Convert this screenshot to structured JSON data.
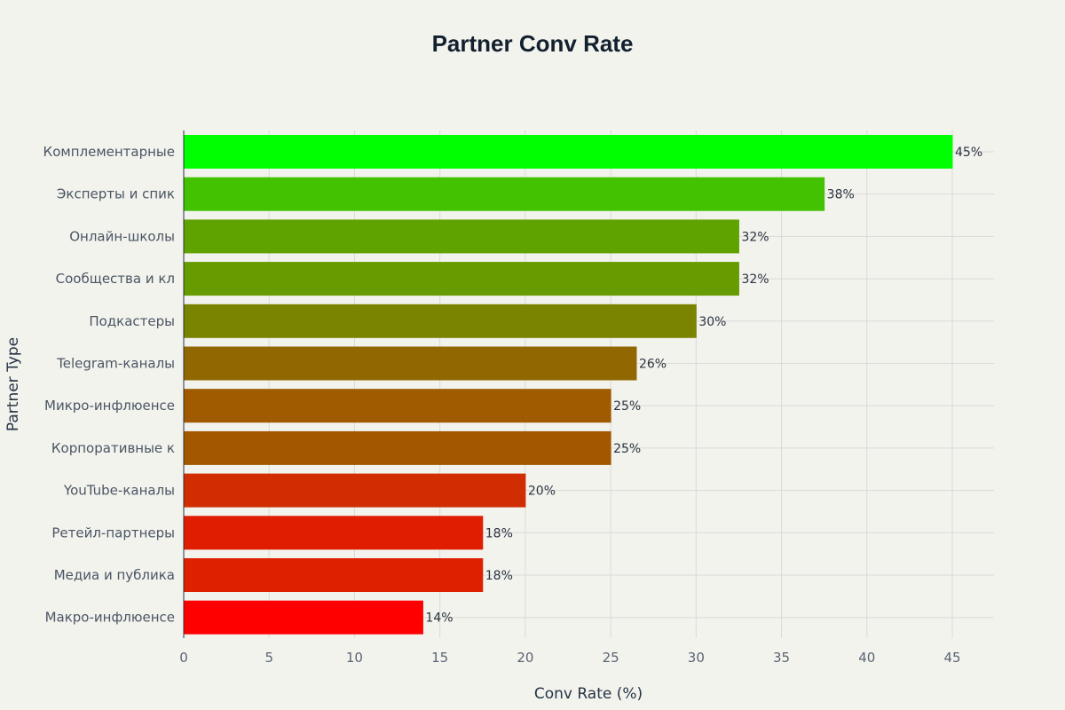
{
  "chart_data": {
    "type": "bar",
    "orientation": "horizontal",
    "title": "Partner Conv Rate",
    "xlabel": "Conv Rate (%)",
    "ylabel": "Partner Type",
    "xlim": [
      0,
      47.5
    ],
    "xticks": [
      0,
      5,
      10,
      15,
      20,
      25,
      30,
      35,
      40,
      45
    ],
    "grid": true,
    "categories": [
      "Комплементарные",
      "Эксперты и спик",
      "Онлайн-школы",
      "Сообщества и кл",
      "Подкастеры",
      "Telegram-каналы",
      "Микро-инфлюенсе",
      "Корпоративные к",
      "YouTube-каналы",
      "Ретейл-партнеры",
      "Медиа и публика",
      "Макро-инфлюенсе"
    ],
    "values": [
      45,
      37.5,
      32.5,
      32.5,
      30,
      26.5,
      25,
      25,
      20,
      17.5,
      17.5,
      14
    ],
    "data_labels": [
      "45%",
      "38%",
      "32%",
      "32%",
      "30%",
      "26%",
      "25%",
      "25%",
      "20%",
      "18%",
      "18%",
      "14%"
    ],
    "colors": [
      "#00ff00",
      "#42c200",
      "#5fa300",
      "#669c00",
      "#7a8400",
      "#916800",
      "#a05a00",
      "#a35800",
      "#d02e00",
      "#e01d00",
      "#de1f00",
      "#ff0000"
    ]
  }
}
